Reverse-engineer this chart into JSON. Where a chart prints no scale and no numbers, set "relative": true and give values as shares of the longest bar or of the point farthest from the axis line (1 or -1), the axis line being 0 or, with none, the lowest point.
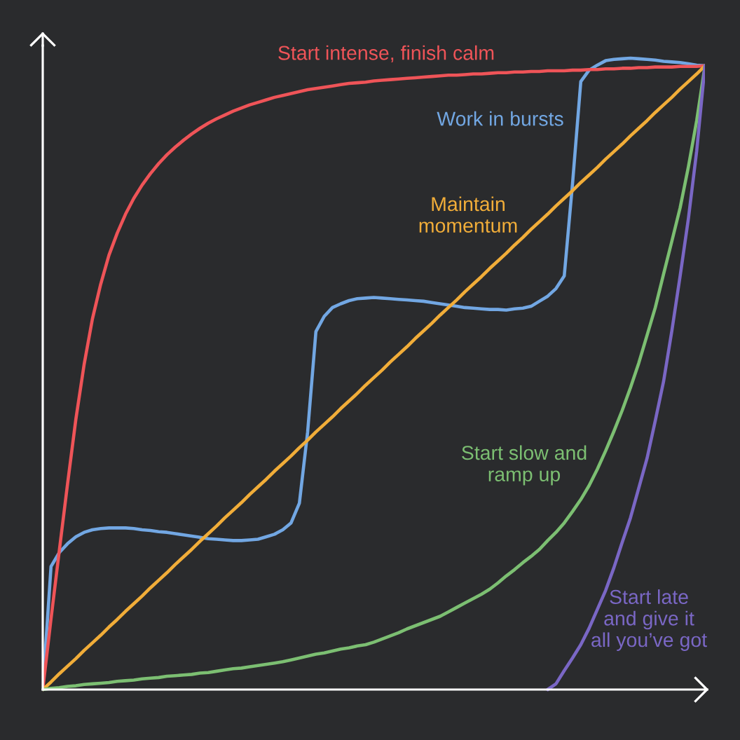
{
  "chart_data": {
    "type": "line",
    "relative": true,
    "categories": [
      null,
      null,
      null,
      null,
      null,
      null,
      null,
      null,
      null,
      null,
      null,
      null,
      null,
      null,
      null,
      null,
      null,
      null,
      null,
      null,
      null,
      null,
      null,
      null,
      null,
      null,
      null,
      null,
      null,
      null,
      null,
      null,
      null,
      null,
      null,
      null,
      null,
      null,
      null,
      null,
      null,
      null,
      null,
      null,
      null,
      null,
      null,
      null,
      null,
      null,
      null,
      null,
      null,
      null,
      null,
      null,
      null,
      null,
      null,
      null,
      null,
      null,
      null,
      null,
      null,
      null,
      null,
      null,
      null,
      null,
      null,
      null,
      null,
      null,
      null,
      null,
      null,
      null,
      null,
      null,
      null
    ],
    "series": [
      {
        "name": "Work in bursts",
        "color": "#72a7e3",
        "values": [
          0,
          0.195,
          0.217,
          0.231,
          0.242,
          0.249,
          0.253,
          0.255,
          0.256,
          0.256,
          0.256,
          0.255,
          0.253,
          0.252,
          0.25,
          0.249,
          0.247,
          0.245,
          0.243,
          0.241,
          0.239,
          0.238,
          0.237,
          0.236,
          0.236,
          0.237,
          0.238,
          0.242,
          0.246,
          0.253,
          0.264,
          0.295,
          0.408,
          0.567,
          0.591,
          0.605,
          0.611,
          0.616,
          0.619,
          0.62,
          0.621,
          0.62,
          0.619,
          0.618,
          0.617,
          0.616,
          0.615,
          0.613,
          0.611,
          0.609,
          0.607,
          0.605,
          0.604,
          0.603,
          0.602,
          0.602,
          0.601,
          0.603,
          0.604,
          0.607,
          0.615,
          0.623,
          0.635,
          0.655,
          0.801,
          0.963,
          0.981,
          0.989,
          0.996,
          0.998,
          0.999,
          1,
          0.999,
          0.998,
          0.997,
          0.995,
          0.994,
          0.993,
          0.991,
          0.989,
          0.988
        ]
      },
      {
        "name": "Start intense, finish calm",
        "color": "#ef5458",
        "values": [
          0,
          0.112,
          0.22,
          0.326,
          0.428,
          0.515,
          0.587,
          0.642,
          0.688,
          0.723,
          0.753,
          0.778,
          0.799,
          0.817,
          0.833,
          0.847,
          0.859,
          0.87,
          0.88,
          0.889,
          0.897,
          0.904,
          0.91,
          0.916,
          0.921,
          0.926,
          0.93,
          0.934,
          0.938,
          0.941,
          0.944,
          0.947,
          0.95,
          0.952,
          0.954,
          0.956,
          0.958,
          0.96,
          0.961,
          0.962,
          0.964,
          0.965,
          0.966,
          0.967,
          0.968,
          0.969,
          0.97,
          0.971,
          0.972,
          0.973,
          0.973,
          0.974,
          0.975,
          0.975,
          0.976,
          0.977,
          0.977,
          0.978,
          0.978,
          0.979,
          0.979,
          0.98,
          0.98,
          0.98,
          0.981,
          0.981,
          0.982,
          0.982,
          0.983,
          0.983,
          0.984,
          0.984,
          0.985,
          0.985,
          0.986,
          0.986,
          0.986,
          0.987,
          0.987,
          0.987,
          0.988
        ]
      },
      {
        "name": "Maintain\nmomentum",
        "color": "#f1ad39",
        "values": [
          0,
          0.012,
          0.025,
          0.037,
          0.049,
          0.062,
          0.074,
          0.086,
          0.099,
          0.111,
          0.124,
          0.136,
          0.148,
          0.161,
          0.173,
          0.185,
          0.198,
          0.21,
          0.222,
          0.235,
          0.247,
          0.259,
          0.272,
          0.284,
          0.296,
          0.309,
          0.321,
          0.333,
          0.346,
          0.358,
          0.37,
          0.383,
          0.395,
          0.408,
          0.42,
          0.432,
          0.445,
          0.457,
          0.469,
          0.482,
          0.494,
          0.506,
          0.519,
          0.531,
          0.543,
          0.556,
          0.568,
          0.58,
          0.593,
          0.605,
          0.617,
          0.63,
          0.642,
          0.654,
          0.667,
          0.679,
          0.691,
          0.704,
          0.716,
          0.729,
          0.741,
          0.753,
          0.766,
          0.778,
          0.79,
          0.803,
          0.815,
          0.827,
          0.84,
          0.852,
          0.864,
          0.877,
          0.889,
          0.901,
          0.914,
          0.926,
          0.938,
          0.951,
          0.963,
          0.975,
          0.988
        ]
      },
      {
        "name": "Start slow and\nramp up",
        "color": "#7cbf72",
        "values": [
          0,
          0.002,
          0.003,
          0.005,
          0.006,
          0.008,
          0.009,
          0.01,
          0.011,
          0.013,
          0.014,
          0.015,
          0.017,
          0.018,
          0.019,
          0.021,
          0.022,
          0.023,
          0.024,
          0.026,
          0.027,
          0.029,
          0.031,
          0.033,
          0.034,
          0.036,
          0.038,
          0.04,
          0.042,
          0.044,
          0.047,
          0.05,
          0.053,
          0.056,
          0.058,
          0.061,
          0.064,
          0.066,
          0.069,
          0.071,
          0.075,
          0.08,
          0.085,
          0.09,
          0.096,
          0.101,
          0.106,
          0.111,
          0.116,
          0.123,
          0.13,
          0.137,
          0.144,
          0.151,
          0.159,
          0.169,
          0.18,
          0.19,
          0.201,
          0.211,
          0.222,
          0.236,
          0.249,
          0.264,
          0.282,
          0.301,
          0.323,
          0.349,
          0.378,
          0.409,
          0.442,
          0.478,
          0.517,
          0.561,
          0.605,
          0.658,
          0.71,
          0.763,
          0.828,
          0.901,
          0.988
        ]
      },
      {
        "name": "Start late\nand give it\nall you’ve got",
        "color": "#7a67c5",
        "values": [
          null,
          null,
          null,
          null,
          null,
          null,
          null,
          null,
          null,
          null,
          null,
          null,
          null,
          null,
          null,
          null,
          null,
          null,
          null,
          null,
          null,
          null,
          null,
          null,
          null,
          null,
          null,
          null,
          null,
          null,
          null,
          null,
          null,
          null,
          null,
          null,
          null,
          null,
          null,
          null,
          null,
          null,
          null,
          null,
          null,
          null,
          null,
          null,
          null,
          null,
          null,
          null,
          null,
          null,
          null,
          null,
          null,
          null,
          null,
          null,
          null,
          0,
          0.009,
          0.03,
          0.05,
          0.071,
          0.097,
          0.127,
          0.157,
          0.193,
          0.233,
          0.272,
          0.319,
          0.366,
          0.426,
          0.488,
          0.568,
          0.655,
          0.746,
          0.853,
          0.988
        ]
      }
    ]
  }
}
